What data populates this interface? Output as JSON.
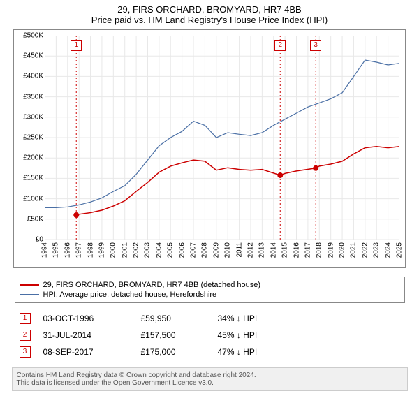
{
  "title_line1": "29, FIRS ORCHARD, BROMYARD, HR7 4BB",
  "title_line2": "Price paid vs. HM Land Registry's House Price Index (HPI)",
  "chart": {
    "background_color": "#ffffff",
    "border_color": "#888888",
    "ylim": [
      0,
      500
    ],
    "ytick_step": 50,
    "yticks": [
      0,
      50,
      100,
      150,
      200,
      250,
      300,
      350,
      400,
      450,
      500
    ],
    "ytick_labels": [
      "£0",
      "£50K",
      "£100K",
      "£150K",
      "£200K",
      "£250K",
      "£300K",
      "£350K",
      "£400K",
      "£450K",
      "£500K"
    ],
    "xlim": [
      1994,
      2025
    ],
    "xticks": [
      1994,
      1995,
      1996,
      1997,
      1998,
      1999,
      2000,
      2001,
      2002,
      2003,
      2004,
      2005,
      2006,
      2007,
      2008,
      2009,
      2010,
      2011,
      2012,
      2013,
      2014,
      2015,
      2016,
      2017,
      2018,
      2019,
      2020,
      2021,
      2022,
      2023,
      2024,
      2025
    ],
    "grid_color": "#e8e8e8",
    "series": [
      {
        "name": "price_paid",
        "label": "29, FIRS ORCHARD, BROMYARD, HR7 4BB (detached house)",
        "color": "#cc0000",
        "line_width": 1.5,
        "points": [
          [
            1996.76,
            59.95
          ],
          [
            1997,
            62
          ],
          [
            1998,
            66
          ],
          [
            1999,
            72
          ],
          [
            2000,
            82
          ],
          [
            2001,
            95
          ],
          [
            2002,
            118
          ],
          [
            2003,
            140
          ],
          [
            2004,
            165
          ],
          [
            2005,
            180
          ],
          [
            2006,
            188
          ],
          [
            2007,
            195
          ],
          [
            2008,
            192
          ],
          [
            2009,
            170
          ],
          [
            2010,
            176
          ],
          [
            2011,
            172
          ],
          [
            2012,
            170
          ],
          [
            2013,
            172
          ],
          [
            2014.58,
            157.5
          ],
          [
            2015,
            162
          ],
          [
            2016,
            168
          ],
          [
            2017.69,
            175
          ],
          [
            2018,
            180
          ],
          [
            2019,
            185
          ],
          [
            2020,
            192
          ],
          [
            2021,
            210
          ],
          [
            2022,
            225
          ],
          [
            2023,
            228
          ],
          [
            2024,
            225
          ],
          [
            2025,
            228
          ]
        ]
      },
      {
        "name": "hpi",
        "label": "HPI: Average price, detached house, Herefordshire",
        "color": "#4a6fa5",
        "line_width": 1.2,
        "points": [
          [
            1994,
            78
          ],
          [
            1995,
            78
          ],
          [
            1996,
            80
          ],
          [
            1997,
            85
          ],
          [
            1998,
            92
          ],
          [
            1999,
            102
          ],
          [
            2000,
            118
          ],
          [
            2001,
            132
          ],
          [
            2002,
            160
          ],
          [
            2003,
            195
          ],
          [
            2004,
            230
          ],
          [
            2005,
            250
          ],
          [
            2006,
            265
          ],
          [
            2007,
            290
          ],
          [
            2008,
            280
          ],
          [
            2009,
            250
          ],
          [
            2010,
            262
          ],
          [
            2011,
            258
          ],
          [
            2012,
            255
          ],
          [
            2013,
            262
          ],
          [
            2014,
            280
          ],
          [
            2015,
            295
          ],
          [
            2016,
            310
          ],
          [
            2017,
            325
          ],
          [
            2018,
            335
          ],
          [
            2019,
            345
          ],
          [
            2020,
            360
          ],
          [
            2021,
            400
          ],
          [
            2022,
            440
          ],
          [
            2023,
            435
          ],
          [
            2024,
            428
          ],
          [
            2025,
            432
          ]
        ]
      }
    ],
    "vlines": [
      {
        "x": 1996.76,
        "color": "#cc0000",
        "dash": "2,3"
      },
      {
        "x": 2014.58,
        "color": "#cc0000",
        "dash": "2,3"
      },
      {
        "x": 2017.69,
        "color": "#cc0000",
        "dash": "2,3"
      }
    ],
    "sale_markers": [
      {
        "id": "1",
        "x": 1996.76,
        "y": 59.95
      },
      {
        "id": "2",
        "x": 2014.58,
        "y": 157.5
      },
      {
        "id": "3",
        "x": 2017.69,
        "y": 175.0
      }
    ]
  },
  "legend": [
    {
      "color": "#cc0000",
      "label": "29, FIRS ORCHARD, BROMYARD, HR7 4BB (detached house)"
    },
    {
      "color": "#4a6fa5",
      "label": "HPI: Average price, detached house, Herefordshire"
    }
  ],
  "events": [
    {
      "id": "1",
      "date": "03-OCT-1996",
      "price": "£59,950",
      "delta": "34% ↓ HPI"
    },
    {
      "id": "2",
      "date": "31-JUL-2014",
      "price": "£157,500",
      "delta": "45% ↓ HPI"
    },
    {
      "id": "3",
      "date": "08-SEP-2017",
      "price": "£175,000",
      "delta": "47% ↓ HPI"
    }
  ],
  "footer_line1": "Contains HM Land Registry data © Crown copyright and database right 2024.",
  "footer_line2": "This data is licensed under the Open Government Licence v3.0."
}
